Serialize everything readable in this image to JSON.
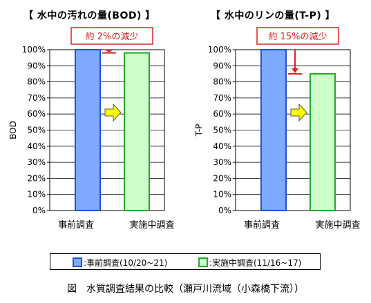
{
  "chart_data": [
    {
      "type": "bar",
      "title": "【 水中の汚れの量(BOD) 】",
      "ylabel": "BOD",
      "categories": [
        "事前調査",
        "実施中調査"
      ],
      "values": [
        100,
        98
      ],
      "ylim": [
        0,
        100
      ],
      "y_ticks": [
        "0%",
        "10%",
        "20%",
        "30%",
        "40%",
        "50%",
        "60%",
        "70%",
        "80%",
        "90%",
        "100%"
      ],
      "annotation": "約 2%の減少",
      "grid": true
    },
    {
      "type": "bar",
      "title": "【 水中のリンの量(T-P) 】",
      "ylabel": "T-P",
      "categories": [
        "事前調査",
        "実施中調査"
      ],
      "values": [
        100,
        85
      ],
      "ylim": [
        0,
        100
      ],
      "y_ticks": [
        "0%",
        "10%",
        "20%",
        "30%",
        "40%",
        "50%",
        "60%",
        "70%",
        "80%",
        "90%",
        "100%"
      ],
      "annotation": "約 15%の減少",
      "grid": true
    }
  ],
  "legend": [
    {
      "label": ":事前調査(10/20~21)",
      "color": "#1a55d4",
      "fill": "#7fa8ff"
    },
    {
      "label": ":実施中調査(11/16~17)",
      "color": "#22aa22",
      "fill": "#ccffcc"
    }
  ],
  "caption": "図　水質調査結果の比較（瀬戸川流域（小森橋下流））",
  "colors": {
    "series1_fill": "#7fa8ff",
    "series1_stroke": "#1a55d4",
    "series2_fill": "#ccffcc",
    "series2_stroke": "#22aa22",
    "annotation": "#e02020",
    "arrow_fill": "#ffff00"
  }
}
